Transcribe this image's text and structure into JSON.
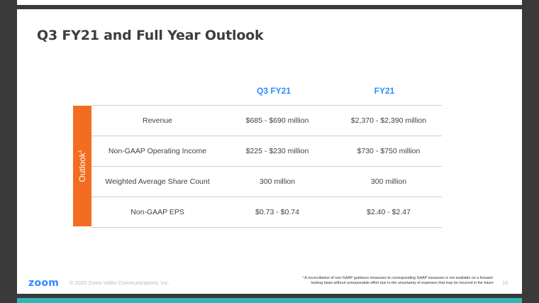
{
  "slide": {
    "title": "Q3 FY21 and Full Year Outlook",
    "columns": {
      "q3": "Q3 FY21",
      "fy": "FY21"
    },
    "sidebar_label": "Outlook",
    "sidebar_superscript": "1",
    "rows": [
      {
        "label": "Revenue",
        "q3": "$685 - $690 million",
        "fy": "$2,370 - $2,390 million"
      },
      {
        "label": "Non-GAAP Operating Income",
        "q3": "$225 - $230 million",
        "fy": "$730 - $750 million"
      },
      {
        "label": "Weighted Average Share Count",
        "q3": "300 million",
        "fy": "300 million"
      },
      {
        "label": "Non-GAAP EPS",
        "q3": "$0.73 - $0.74",
        "fy": "$2.40 - $2.47"
      }
    ],
    "footer": {
      "logo": "zoom",
      "copyright": "© 2020 Zoom Video Communications, Inc.",
      "footnote_line1": "¹ A reconciliation of non-GAAP guidance measures to corresponding GAAP measures is not available on a forward-",
      "footnote_line2": "looking basis without unreasonable effort due to the uncertainty of expenses that may be incurred in the future",
      "page_number": "16"
    },
    "colors": {
      "accent": "#2d8cff",
      "sidebar": "#f26d21",
      "bottom_bar": "#2fb6b4"
    }
  }
}
